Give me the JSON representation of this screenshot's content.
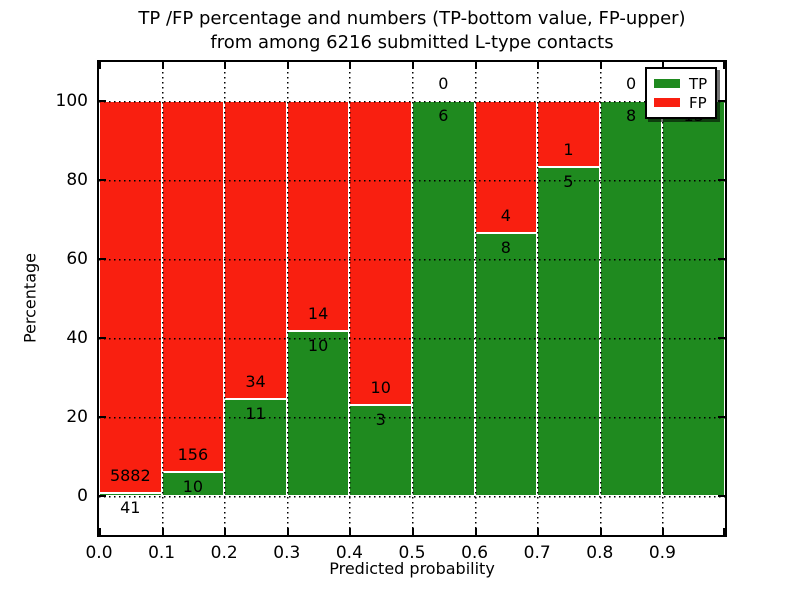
{
  "title": {
    "line1": "TP /FP percentage and numbers (TP-bottom value, FP-upper)",
    "line2": "from among 6216 submitted L-type contacts"
  },
  "axes": {
    "xlabel": "Predicted probability",
    "ylabel": "Percentage",
    "x_tick_labels": [
      "0.0",
      "0.1",
      "0.2",
      "0.3",
      "0.4",
      "0.5",
      "0.6",
      "0.7",
      "0.8",
      "0.9"
    ],
    "y_tick_values": [
      0,
      20,
      40,
      60,
      80,
      100
    ]
  },
  "legend": {
    "items": [
      {
        "label": "TP",
        "color": "#1f8a1f"
      },
      {
        "label": "FP",
        "color": "#f91f10"
      }
    ]
  },
  "colors": {
    "tp_green": "#1f8a1f",
    "fp_red": "#f91f10",
    "grid": "#000000",
    "background": "#ffffff",
    "text": "#000000"
  },
  "chart_data": {
    "type": "bar",
    "stacked": true,
    "title": "TP /FP percentage and numbers (TP-bottom value, FP-upper) from among 6216 submitted L-type contacts",
    "xlabel": "Predicted probability",
    "ylabel": "Percentage",
    "total_contacts": 6216,
    "categories": [
      "0.0-0.1",
      "0.1-0.2",
      "0.2-0.3",
      "0.3-0.4",
      "0.4-0.5",
      "0.5-0.6",
      "0.6-0.7",
      "0.7-0.8",
      "0.8-0.9",
      "0.9-1.0"
    ],
    "x_bin_edges": [
      0.0,
      0.1,
      0.2,
      0.3,
      0.4,
      0.5,
      0.6,
      0.7,
      0.8,
      0.9,
      1.0
    ],
    "series": [
      {
        "name": "TP",
        "color": "#1f8a1f",
        "counts": [
          41,
          10,
          11,
          10,
          3,
          6,
          8,
          5,
          8,
          13
        ],
        "pct": [
          0.69,
          6.02,
          24.44,
          41.67,
          23.08,
          100.0,
          66.67,
          83.33,
          100.0,
          100.0
        ]
      },
      {
        "name": "FP",
        "color": "#f91f10",
        "counts": [
          5882,
          156,
          34,
          14,
          10,
          0,
          4,
          1,
          0,
          0
        ],
        "pct": [
          99.31,
          93.98,
          75.56,
          58.33,
          76.92,
          0.0,
          33.33,
          16.67,
          0.0,
          0.0
        ]
      }
    ],
    "ylim": [
      -10,
      110
    ],
    "grid": true,
    "grid_style": "dotted",
    "legend_position": "upper right",
    "label_rule": "TP count below segment boundary, FP count above segment boundary"
  }
}
